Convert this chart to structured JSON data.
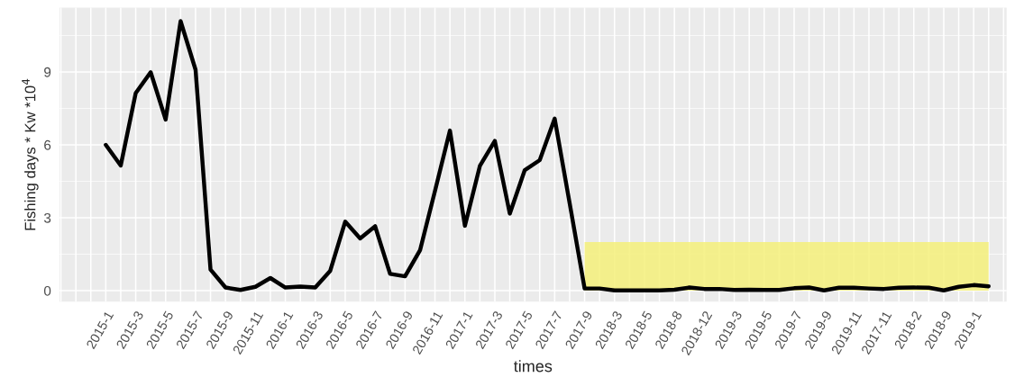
{
  "chart_data": {
    "type": "line",
    "xlabel": "times",
    "ylabel": "Fishing days * Kw *10$^{4}$",
    "categories": [
      "2015-1",
      null,
      "2015-3",
      null,
      "2015-5",
      null,
      "2015-7",
      null,
      "2015-9",
      null,
      "2015-11",
      null,
      "2016-1",
      null,
      "2016-3",
      null,
      "2016-5",
      null,
      "2016-7",
      null,
      "2016-9",
      null,
      "2016-11",
      null,
      "2017-1",
      null,
      "2017-3",
      null,
      "2017-5",
      null,
      "2017-7",
      null,
      "2017-9",
      null,
      "2018-3",
      null,
      "2018-5",
      null,
      "2018-8",
      null,
      "2018-12",
      null,
      "2019-3",
      null,
      "2019-5",
      null,
      "2019-7",
      null,
      "2019-9",
      null,
      "2019-11",
      null,
      "2017-11",
      null,
      "2018-2",
      null,
      "2018-9",
      null,
      "2019-1",
      null
    ],
    "series": [
      {
        "type": "area",
        "color": "#f5f07a",
        "values": [
          null,
          null,
          null,
          null,
          null,
          null,
          null,
          null,
          null,
          null,
          null,
          null,
          null,
          null,
          null,
          null,
          null,
          null,
          null,
          null,
          null,
          null,
          null,
          null,
          null,
          null,
          null,
          null,
          null,
          null,
          null,
          null,
          2,
          2,
          2,
          2,
          2,
          2,
          2,
          2,
          2,
          2,
          2,
          2,
          2,
          2,
          2,
          2,
          2,
          2,
          2,
          2,
          2,
          2,
          2,
          2,
          2,
          2,
          2,
          2
        ]
      },
      {
        "color": "#000000",
        "values": [
          6.0,
          5.15,
          8.13,
          8.99,
          7.04,
          11.09,
          9.09,
          0.87,
          0.13,
          0.03,
          0.16,
          0.52,
          0.13,
          0.17,
          0.13,
          0.82,
          2.84,
          2.15,
          2.65,
          0.69,
          0.59,
          1.66,
          4.1,
          6.59,
          2.67,
          5.13,
          6.16,
          3.17,
          4.96,
          5.37,
          7.08,
          3.6,
          0.09,
          0.09,
          0.01,
          0.01,
          0.01,
          0.01,
          0.04,
          0.13,
          0.07,
          0.07,
          0.03,
          0.04,
          0.03,
          0.03,
          0.1,
          0.13,
          0.01,
          0.12,
          0.12,
          0.09,
          0.07,
          0.12,
          0.13,
          0.12,
          0.01,
          0.16,
          0.23,
          0.18
        ]
      }
    ],
    "ylim": [
      -0.45,
      11.65
    ],
    "yticks": [
      0,
      3,
      6,
      9
    ],
    "grid": true,
    "legend": false,
    "line_style": "solid",
    "marker": "none"
  }
}
